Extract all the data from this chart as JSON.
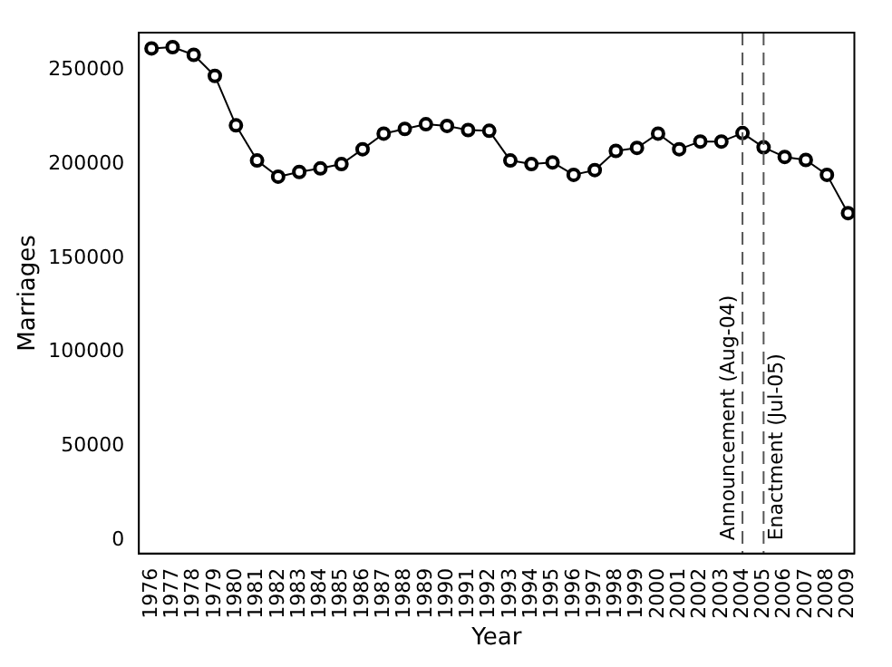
{
  "chart_data": {
    "type": "line",
    "xlabel": "Year",
    "ylabel": "Marriages",
    "x": [
      1976,
      1977,
      1978,
      1979,
      1980,
      1981,
      1982,
      1983,
      1984,
      1985,
      1986,
      1987,
      1988,
      1989,
      1990,
      1991,
      1992,
      1993,
      1994,
      1995,
      1996,
      1997,
      1998,
      1999,
      2000,
      2001,
      2002,
      2003,
      2004,
      2005,
      2006,
      2007,
      2008,
      2009
    ],
    "series": [
      {
        "color": "#000000",
        "values": [
          261600,
          262300,
          258200,
          247000,
          220700,
          202000,
          193400,
          195900,
          197800,
          200100,
          208000,
          216300,
          218800,
          221300,
          220400,
          218200,
          217800,
          202000,
          200100,
          201000,
          194400,
          196900,
          207100,
          208700,
          216300,
          208000,
          212100,
          212100,
          216600,
          209000,
          203900,
          202300,
          194400,
          174000
        ]
      }
    ],
    "xlim": [
      1975.4,
      2009.3
    ],
    "xticks": [
      1976,
      1977,
      1978,
      1979,
      1980,
      1981,
      1982,
      1983,
      1984,
      1985,
      1986,
      1987,
      1988,
      1989,
      1990,
      1991,
      1992,
      1993,
      1994,
      1995,
      1996,
      1997,
      1998,
      1999,
      2000,
      2001,
      2002,
      2003,
      2004,
      2005,
      2006,
      2007,
      2008,
      2009
    ],
    "ylim": [
      -7000,
      270000
    ],
    "yticks": [
      0,
      50000,
      100000,
      150000,
      200000,
      250000
    ],
    "ref_lines": [
      {
        "axis": "x",
        "value": 2004,
        "label": "Announcement (Aug-04)",
        "line_style": "dashed",
        "color": "#555555"
      },
      {
        "axis": "x",
        "value": 2005,
        "label": "Enactment (Jul-05)",
        "line_style": "dashed",
        "color": "#555555"
      }
    ],
    "grid": false,
    "legend": false,
    "marker": "circle",
    "line_style": "solid"
  }
}
